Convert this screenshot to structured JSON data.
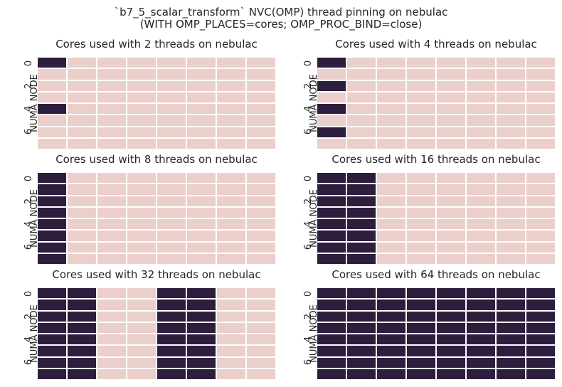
{
  "chart_data": {
    "type": "heatmap",
    "title_line1": "`b7_5_scalar_transform` NVC(OMP) thread pinning on nebulac",
    "title_line2": "(WITH OMP_PLACES=cores; OMP_PROC_BIND=close)",
    "colors": {
      "used": "#2d1e3e",
      "unused": "#ebcfcb"
    },
    "ylabel": "NUMA NODE",
    "yticks": [
      "0",
      "2",
      "4",
      "6"
    ],
    "rows": 8,
    "cols": 8,
    "panels": [
      {
        "title": "Cores used with 2 threads on nebulac",
        "matrix": [
          [
            1,
            0,
            0,
            0,
            0,
            0,
            0,
            0
          ],
          [
            0,
            0,
            0,
            0,
            0,
            0,
            0,
            0
          ],
          [
            0,
            0,
            0,
            0,
            0,
            0,
            0,
            0
          ],
          [
            0,
            0,
            0,
            0,
            0,
            0,
            0,
            0
          ],
          [
            1,
            0,
            0,
            0,
            0,
            0,
            0,
            0
          ],
          [
            0,
            0,
            0,
            0,
            0,
            0,
            0,
            0
          ],
          [
            0,
            0,
            0,
            0,
            0,
            0,
            0,
            0
          ],
          [
            0,
            0,
            0,
            0,
            0,
            0,
            0,
            0
          ]
        ]
      },
      {
        "title": "Cores used with 4 threads on nebulac",
        "matrix": [
          [
            1,
            0,
            0,
            0,
            0,
            0,
            0,
            0
          ],
          [
            0,
            0,
            0,
            0,
            0,
            0,
            0,
            0
          ],
          [
            1,
            0,
            0,
            0,
            0,
            0,
            0,
            0
          ],
          [
            0,
            0,
            0,
            0,
            0,
            0,
            0,
            0
          ],
          [
            1,
            0,
            0,
            0,
            0,
            0,
            0,
            0
          ],
          [
            0,
            0,
            0,
            0,
            0,
            0,
            0,
            0
          ],
          [
            1,
            0,
            0,
            0,
            0,
            0,
            0,
            0
          ],
          [
            0,
            0,
            0,
            0,
            0,
            0,
            0,
            0
          ]
        ]
      },
      {
        "title": "Cores used with 8 threads on nebulac",
        "matrix": [
          [
            1,
            0,
            0,
            0,
            0,
            0,
            0,
            0
          ],
          [
            1,
            0,
            0,
            0,
            0,
            0,
            0,
            0
          ],
          [
            1,
            0,
            0,
            0,
            0,
            0,
            0,
            0
          ],
          [
            1,
            0,
            0,
            0,
            0,
            0,
            0,
            0
          ],
          [
            1,
            0,
            0,
            0,
            0,
            0,
            0,
            0
          ],
          [
            1,
            0,
            0,
            0,
            0,
            0,
            0,
            0
          ],
          [
            1,
            0,
            0,
            0,
            0,
            0,
            0,
            0
          ],
          [
            1,
            0,
            0,
            0,
            0,
            0,
            0,
            0
          ]
        ]
      },
      {
        "title": "Cores used with 16 threads on nebulac",
        "matrix": [
          [
            1,
            1,
            0,
            0,
            0,
            0,
            0,
            0
          ],
          [
            1,
            1,
            0,
            0,
            0,
            0,
            0,
            0
          ],
          [
            1,
            1,
            0,
            0,
            0,
            0,
            0,
            0
          ],
          [
            1,
            1,
            0,
            0,
            0,
            0,
            0,
            0
          ],
          [
            1,
            1,
            0,
            0,
            0,
            0,
            0,
            0
          ],
          [
            1,
            1,
            0,
            0,
            0,
            0,
            0,
            0
          ],
          [
            1,
            1,
            0,
            0,
            0,
            0,
            0,
            0
          ],
          [
            1,
            1,
            0,
            0,
            0,
            0,
            0,
            0
          ]
        ]
      },
      {
        "title": "Cores used with 32 threads on nebulac",
        "matrix": [
          [
            1,
            1,
            0,
            0,
            1,
            1,
            0,
            0
          ],
          [
            1,
            1,
            0,
            0,
            1,
            1,
            0,
            0
          ],
          [
            1,
            1,
            0,
            0,
            1,
            1,
            0,
            0
          ],
          [
            1,
            1,
            0,
            0,
            1,
            1,
            0,
            0
          ],
          [
            1,
            1,
            0,
            0,
            1,
            1,
            0,
            0
          ],
          [
            1,
            1,
            0,
            0,
            1,
            1,
            0,
            0
          ],
          [
            1,
            1,
            0,
            0,
            1,
            1,
            0,
            0
          ],
          [
            1,
            1,
            0,
            0,
            1,
            1,
            0,
            0
          ]
        ]
      },
      {
        "title": "Cores used with 64 threads on nebulac",
        "matrix": [
          [
            1,
            1,
            1,
            1,
            1,
            1,
            1,
            1
          ],
          [
            1,
            1,
            1,
            1,
            1,
            1,
            1,
            1
          ],
          [
            1,
            1,
            1,
            1,
            1,
            1,
            1,
            1
          ],
          [
            1,
            1,
            1,
            1,
            1,
            1,
            1,
            1
          ],
          [
            1,
            1,
            1,
            1,
            1,
            1,
            1,
            1
          ],
          [
            1,
            1,
            1,
            1,
            1,
            1,
            1,
            1
          ],
          [
            1,
            1,
            1,
            1,
            1,
            1,
            1,
            1
          ],
          [
            1,
            1,
            1,
            1,
            1,
            1,
            1,
            1
          ]
        ]
      }
    ]
  }
}
